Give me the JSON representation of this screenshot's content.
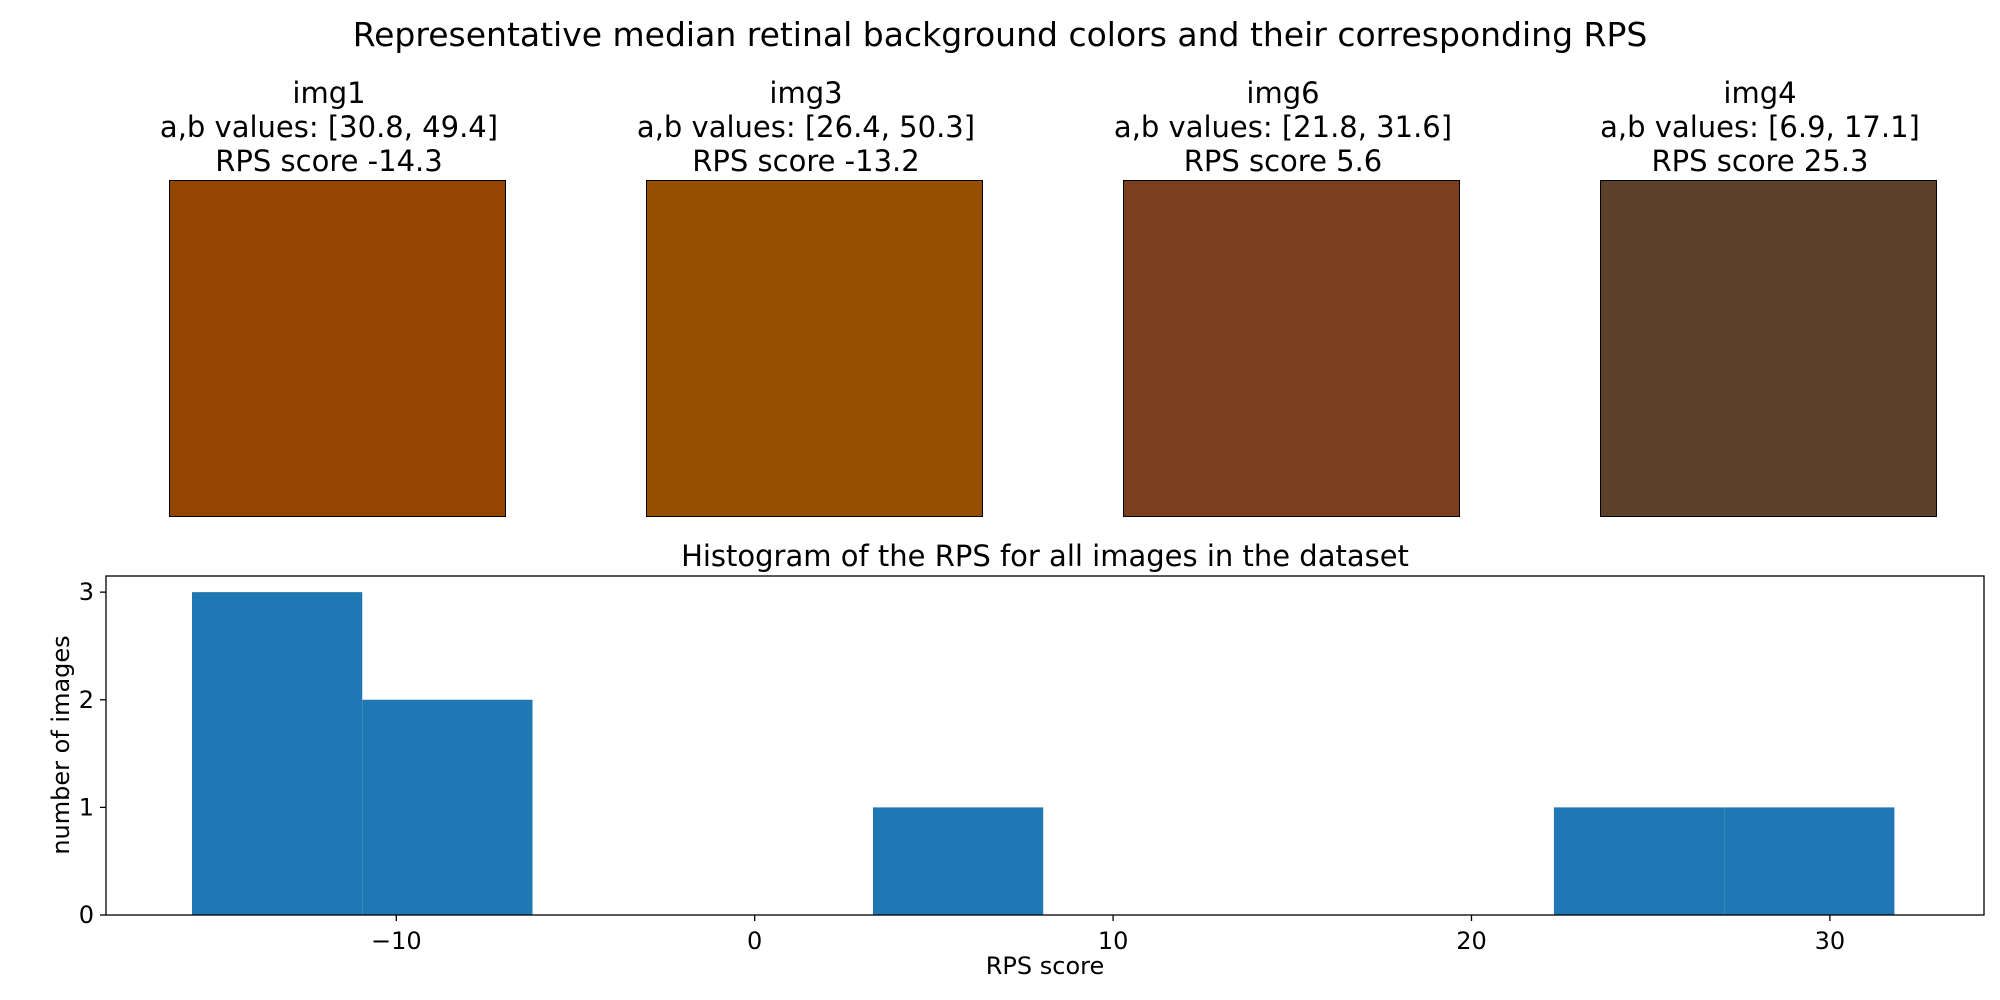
{
  "figure": {
    "title": "Representative median retinal background colors and their corresponding RPS"
  },
  "swatches": [
    {
      "name": "img1",
      "ab_line": "a,b values: [30.8, 49.4]",
      "rps_line": "RPS score -14.3",
      "color": "#944500"
    },
    {
      "name": "img3",
      "ab_line": "a,b values: [26.4, 50.3]",
      "rps_line": "RPS score -13.2",
      "color": "#964f00"
    },
    {
      "name": "img6",
      "ab_line": "a,b values: [21.8, 31.6]",
      "rps_line": "RPS score 5.6",
      "color": "#7b3f1d"
    },
    {
      "name": "img4",
      "ab_line": "a,b values: [6.9, 17.1]",
      "rps_line": "RPS score 25.3",
      "color": "#5b402b"
    }
  ],
  "chart_data": {
    "type": "bar",
    "subtype": "histogram",
    "title": "Histogram of the RPS for all images in the dataset",
    "xlabel": "RPS score",
    "ylabel": "number of images",
    "xlim": [
      -18.1,
      34.3
    ],
    "ylim": [
      0,
      3.15
    ],
    "xticks": [
      -10,
      0,
      10,
      20,
      30
    ],
    "xtick_labels": [
      "−10",
      "0",
      "10",
      "20",
      "30"
    ],
    "yticks": [
      0,
      1,
      2,
      3
    ],
    "ytick_labels": [
      "0",
      "1",
      "2",
      "3"
    ],
    "grid": false,
    "legend": "none",
    "bar_color": "#1f77b4",
    "bins": [
      {
        "x0": -15.7,
        "x1": -10.95,
        "count": 3
      },
      {
        "x0": -10.95,
        "x1": -6.2,
        "count": 2
      },
      {
        "x0": -6.2,
        "x1": -1.45,
        "count": 0
      },
      {
        "x0": -1.45,
        "x1": 3.3,
        "count": 0
      },
      {
        "x0": 3.3,
        "x1": 8.05,
        "count": 1
      },
      {
        "x0": 8.05,
        "x1": 12.8,
        "count": 0
      },
      {
        "x0": 12.8,
        "x1": 17.55,
        "count": 0
      },
      {
        "x0": 17.55,
        "x1": 22.3,
        "count": 0
      },
      {
        "x0": 22.3,
        "x1": 27.05,
        "count": 1
      },
      {
        "x0": 27.05,
        "x1": 31.8,
        "count": 1
      }
    ]
  }
}
